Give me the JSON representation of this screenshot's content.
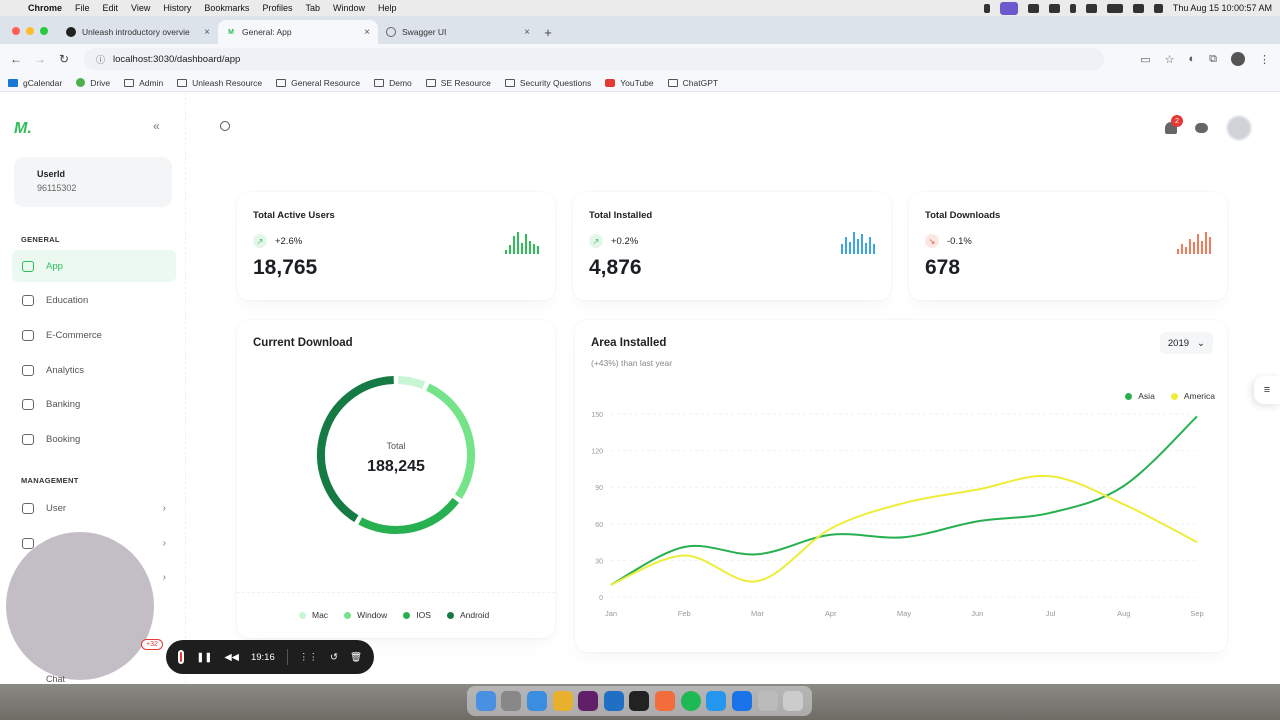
{
  "menubar": {
    "items": [
      "Chrome",
      "File",
      "Edit",
      "View",
      "History",
      "Bookmarks",
      "Profiles",
      "Tab",
      "Window",
      "Help"
    ],
    "clock": "Thu Aug 15  10:00:57 AM"
  },
  "tabs": [
    {
      "title": "Unleash introductory overvie",
      "favicon": "github"
    },
    {
      "title": "General: App",
      "favicon": "app-logo"
    },
    {
      "title": "Swagger UI",
      "favicon": "globe"
    }
  ],
  "address": {
    "url": "localhost:3030/dashboard/app"
  },
  "bookmarks": [
    "gCalendar",
    "Drive",
    "Admin",
    "Unleash Resource",
    "General Resource",
    "Demo",
    "SE Resource",
    "Security Questions",
    "YouTube",
    "ChatGPT"
  ],
  "sidebar": {
    "user_label": "UserId",
    "user_value": "96115302",
    "general_heading": "GENERAL",
    "general": [
      {
        "label": "App",
        "icon": "app-icon"
      },
      {
        "label": "Education",
        "icon": "education-icon"
      },
      {
        "label": "E-Commerce",
        "icon": "ecommerce-icon"
      },
      {
        "label": "Analytics",
        "icon": "analytics-icon"
      },
      {
        "label": "Banking",
        "icon": "banking-icon"
      },
      {
        "label": "Booking",
        "icon": "booking-icon"
      }
    ],
    "management_heading": "MANAGEMENT",
    "management": [
      {
        "label": "User"
      }
    ],
    "chat_label": "Chat",
    "badge": "+32"
  },
  "header": {
    "notifications": "2"
  },
  "stats": [
    {
      "title": "Total Active Users",
      "change": "+2.6%",
      "trend": "up",
      "value": "18,765",
      "color": "#2ebd59",
      "spark": [
        4,
        8,
        16,
        20,
        10,
        18,
        12,
        9,
        7
      ]
    },
    {
      "title": "Total Installed",
      "change": "+0.2%",
      "trend": "up",
      "value": "4,876",
      "color": "#3aa6e8",
      "spark": [
        8,
        14,
        10,
        18,
        12,
        16,
        9,
        14,
        8
      ]
    },
    {
      "title": "Total Downloads",
      "change": "-0.1%",
      "trend": "down",
      "value": "678",
      "color": "#f27b5c",
      "spark": [
        4,
        8,
        6,
        12,
        10,
        16,
        11,
        18,
        14
      ]
    }
  ],
  "download": {
    "title": "Current Download",
    "total_label": "Total",
    "total_value": "188,245",
    "legend": [
      {
        "name": "Mac",
        "color": "#c8f5d3"
      },
      {
        "name": "Window",
        "color": "#74e389"
      },
      {
        "name": "IOS",
        "color": "#27b04f"
      },
      {
        "name": "Android",
        "color": "#167a45"
      }
    ]
  },
  "area": {
    "title": "Area Installed",
    "subtitle": "(+43%) than last year",
    "year": "2019"
  },
  "chart_data": [
    {
      "type": "pie",
      "title": "Current Download",
      "categories": [
        "Mac",
        "Window",
        "IOS",
        "Android"
      ],
      "values": [
        12244,
        53345,
        44313,
        78343
      ],
      "colors": [
        "#c8f5d3",
        "#74e389",
        "#27b04f",
        "#167a45"
      ],
      "center_label": "Total",
      "center_value": "188,245"
    },
    {
      "type": "line",
      "title": "Area Installed",
      "subtitle": "(+43%) than last year",
      "categories": [
        "Jan",
        "Feb",
        "Mar",
        "Apr",
        "May",
        "Jun",
        "Jul",
        "Aug",
        "Sep"
      ],
      "series": [
        {
          "name": "Asia",
          "color": "#27b04f",
          "values": [
            10,
            41,
            35,
            51,
            49,
            62,
            69,
            91,
            148
          ]
        },
        {
          "name": "America",
          "color": "#eded3a",
          "values": [
            10,
            34,
            13,
            56,
            77,
            88,
            99,
            76,
            45
          ]
        }
      ],
      "ylim": [
        0,
        150
      ],
      "yticks": [
        0,
        30,
        60,
        90,
        120,
        150
      ],
      "legend": "top-right",
      "grid": true
    }
  ],
  "recorder": {
    "time": "19:16"
  }
}
